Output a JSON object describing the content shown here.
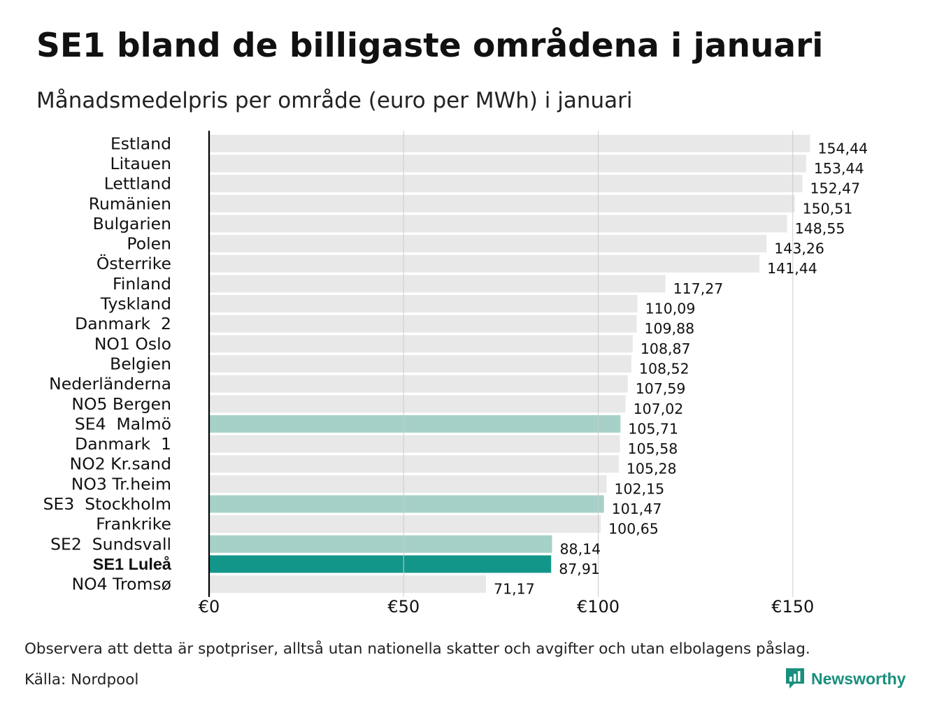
{
  "title": "SE1 bland de billigaste områdena i januari",
  "subtitle": "Månadsmedelpris per område (euro per MWh) i januari",
  "footnote": "Observera att detta är spotpriser, alltså utan nationella skatter och avgifter och utan elbolagens påslag.",
  "source": "Källa: Nordpool",
  "brand": "Newsworthy",
  "colors": {
    "default_bar": "#e8e8e8",
    "sweden_bar": "#a6d1c8",
    "highlight_bar": "#13968a",
    "grid": "#cccccc",
    "axis": "#000000",
    "brand": "#1a8f7e"
  },
  "chart_data": {
    "type": "bar",
    "orientation": "horizontal",
    "title": "SE1 bland de billigaste områdena i januari",
    "xlabel": "",
    "ylabel": "",
    "xlim": [
      0,
      160
    ],
    "x_ticks": [
      0,
      50,
      100,
      150
    ],
    "x_tick_labels": [
      "€0",
      "€50",
      "€100",
      "€150"
    ],
    "grid": true,
    "categories": [
      "Estland",
      "Litauen",
      "Lettland",
      "Rumänien",
      "Bulgarien",
      "Polen",
      "Österrike",
      "Finland",
      "Tyskland",
      "Danmark  2",
      "NO1 Oslo",
      "Belgien",
      "Nederländerna",
      "NO5 Bergen",
      "SE4  Malmö",
      "Danmark  1",
      "NO2 Kr.sand",
      "NO3 Tr.heim",
      "SE3  Stockholm",
      "Frankrike",
      "SE2  Sundsvall",
      "SE1 Luleå",
      "NO4 Tromsø"
    ],
    "values": [
      154.44,
      153.44,
      152.47,
      150.51,
      148.55,
      143.26,
      141.44,
      117.27,
      110.09,
      109.88,
      108.87,
      108.52,
      107.59,
      107.02,
      105.71,
      105.58,
      105.28,
      102.15,
      101.47,
      100.65,
      88.14,
      87.91,
      71.17
    ],
    "value_labels": [
      "154,44",
      "153,44",
      "152,47",
      "150,51",
      "148,55",
      "143,26",
      "141,44",
      "117,27",
      "110,09",
      "109,88",
      "108,87",
      "108,52",
      "107,59",
      "107,02",
      "105,71",
      "105,58",
      "105,28",
      "102,15",
      "101,47",
      "100,65",
      "88,14",
      "87,91",
      "71,17"
    ],
    "bar_kind": [
      "default",
      "default",
      "default",
      "default",
      "default",
      "default",
      "default",
      "default",
      "default",
      "default",
      "default",
      "default",
      "default",
      "default",
      "sweden",
      "default",
      "default",
      "default",
      "sweden",
      "default",
      "sweden",
      "highlight",
      "default"
    ],
    "bold_labels": [
      "SE1 Luleå"
    ]
  }
}
